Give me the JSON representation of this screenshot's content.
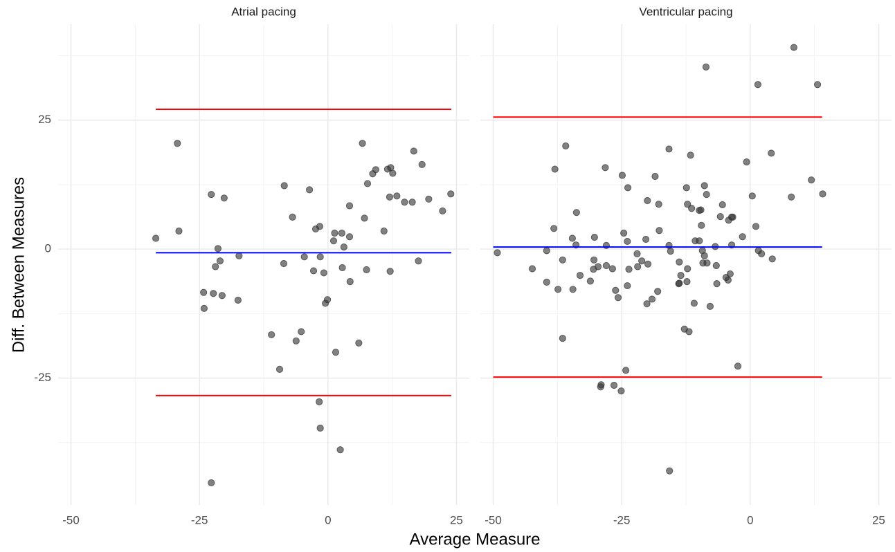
{
  "chart_data": {
    "type": "scatter",
    "xlabel": "Average Measure",
    "ylabel": "Diff. Between Measures",
    "xlim": [
      -52.5,
      27.5
    ],
    "ylim": [
      -49.6,
      43.6
    ],
    "xticks": [
      -50,
      -25,
      0,
      25
    ],
    "yticks": [
      -25,
      0,
      25
    ],
    "minor_xticks": [
      -37.5,
      -12.5,
      12.5
    ],
    "minor_yticks": [
      -37.5,
      -12.5,
      12.5,
      37.5
    ],
    "grid": true,
    "point_color": "#333333",
    "facets": [
      {
        "title": "Atrial pacing",
        "x": [
          -33.5,
          -29.3,
          -29.0,
          -22.7,
          -20.2,
          -21.4,
          -21.9,
          -21.0,
          -24.2,
          -22.3,
          -20.6,
          -24.1,
          -17.3,
          -17.5,
          -22.7,
          -6.9,
          -8.5,
          -8.6,
          -3.6,
          -4.6,
          -2.4,
          -1.6,
          -2.8,
          -1.5,
          -0.8,
          -0.5,
          -0.1,
          -11.0,
          -6.2,
          -5.2,
          -9.4,
          1.3,
          1.1,
          2.7,
          3.1,
          2.8,
          1.5,
          4.2,
          4.2,
          4.3,
          6.0,
          6.7,
          7.1,
          7.5,
          7.7,
          8.7,
          9.3,
          10.9,
          11.6,
          12.2,
          12.6,
          12.0,
          12.1,
          13.4,
          14.9,
          16.4,
          16.7,
          18.3,
          17.6,
          19.6,
          22.3,
          23.9,
          -1.7,
          -1.5,
          2.4
        ],
        "y": [
          2.1,
          20.5,
          3.5,
          10.6,
          9.9,
          0.1,
          -3.4,
          -2.3,
          -8.4,
          -8.6,
          -9.0,
          -11.5,
          -1.3,
          -9.9,
          -45.3,
          6.2,
          12.3,
          -2.8,
          11.5,
          -1.5,
          3.9,
          4.4,
          -4.2,
          -1.5,
          -4.6,
          -10.5,
          -9.8,
          -16.6,
          -17.8,
          -16.0,
          -23.3,
          3.1,
          1.6,
          3.1,
          0.4,
          -3.6,
          -20.0,
          8.4,
          2.4,
          -6.3,
          -18.2,
          20.5,
          6.0,
          -4.0,
          12.7,
          14.6,
          15.4,
          3.5,
          15.5,
          15.8,
          14.7,
          10.1,
          -4.3,
          10.3,
          9.1,
          9.1,
          19.0,
          16.4,
          -2.3,
          9.7,
          7.4,
          10.7,
          -29.6,
          -34.7,
          -38.9
        ],
        "hlines": [
          {
            "y": 27.1,
            "x": [
              -33.5,
              24.0
            ],
            "color": "#ff0000"
          },
          {
            "y": -0.7,
            "x": [
              -33.5,
              24.0
            ],
            "color": "#0000ff"
          },
          {
            "y": -28.4,
            "x": [
              -33.5,
              24.0
            ],
            "color": "#ff0000"
          }
        ]
      },
      {
        "title": "Ventricular pacing",
        "x": [
          -49.2,
          -42.4,
          -39.6,
          -39.6,
          -38.2,
          -38.0,
          -37.4,
          -36.5,
          -36.5,
          -35.9,
          -34.6,
          -34.5,
          -33.9,
          -33.8,
          -33.1,
          -31.1,
          -30.4,
          -30.3,
          -30.5,
          -29.6,
          -29.0,
          -29.1,
          -28.2,
          -28.0,
          -28.0,
          -26.8,
          -26.5,
          -26.2,
          -25.7,
          -25.1,
          -24.9,
          -24.6,
          -24.2,
          -23.9,
          -23.9,
          -23.8,
          -23.6,
          -22.0,
          -21.9,
          -21.1,
          -20.3,
          -20.1,
          -20.0,
          -19.9,
          -19.1,
          -18.5,
          -18.0,
          -17.8,
          -17.7,
          -15.8,
          -15.8,
          -15.5,
          -15.7,
          -13.8,
          -13.9,
          -13.8,
          -13.5,
          -12.8,
          -12.4,
          -12.3,
          -12.2,
          -12.2,
          -11.9,
          -11.6,
          -11.4,
          -10.9,
          -10.7,
          -9.9,
          -9.9,
          -9.6,
          -9.5,
          -9.3,
          -9.2,
          -8.9,
          -8.9,
          -8.6,
          -8.5,
          -8.4,
          -7.8,
          -6.8,
          -6.6,
          -6.5,
          -5.8,
          -5.4,
          -4.7,
          -4.3,
          -4.2,
          -3.9,
          -3.6,
          -3.4,
          -3.6,
          -2.4,
          -1.5,
          -0.7,
          0.4,
          1.1,
          1.5,
          1.6,
          2.2,
          4.1,
          4.3,
          8.0,
          8.5,
          11.9,
          13.1,
          14.1
        ],
        "y": [
          -0.7,
          -3.8,
          -6.4,
          -0.3,
          4.0,
          15.5,
          -7.8,
          -2.1,
          -17.3,
          20.0,
          2.1,
          -7.8,
          0.8,
          7.1,
          -5.1,
          -6.2,
          -2.1,
          2.3,
          -3.9,
          -3.4,
          -26.3,
          -26.7,
          15.8,
          0.7,
          -3.2,
          -3.8,
          -26.4,
          -8.0,
          -9.4,
          -27.5,
          14.3,
          3.1,
          -23.5,
          -7.1,
          1.5,
          11.9,
          -3.9,
          -0.9,
          -3.4,
          -2.3,
          1.9,
          -10.6,
          9.4,
          -2.9,
          -9.7,
          14.1,
          -8.2,
          8.7,
          3.6,
          19.4,
          0.7,
          -0.4,
          -43.0,
          -2.5,
          -6.7,
          -6.6,
          -5.1,
          -15.5,
          11.9,
          -6.3,
          8.7,
          -3.8,
          -16.0,
          18.2,
          7.9,
          -10.5,
          1.6,
          1.6,
          7.5,
          7.6,
          4.6,
          -0.3,
          -2.7,
          -1.3,
          12.3,
          35.3,
          10.6,
          -2.7,
          -11.1,
          0.5,
          -3.2,
          -6.7,
          6.3,
          8.6,
          -5.5,
          -6.0,
          5.6,
          -4.8,
          6.2,
          6.2,
          0.8,
          -22.7,
          2.4,
          16.9,
          10.3,
          4.4,
          31.9,
          -0.3,
          -0.9,
          18.6,
          -1.9,
          10.1,
          39.1,
          13.4,
          31.9,
          10.7
        ],
        "hlines": [
          {
            "y": 25.6,
            "x": [
              -50.0,
              14.0
            ],
            "color": "#ff0000"
          },
          {
            "y": 0.4,
            "x": [
              -50.0,
              14.0
            ],
            "color": "#0000ff"
          },
          {
            "y": -24.8,
            "x": [
              -50.0,
              14.0
            ],
            "color": "#ff0000"
          }
        ]
      }
    ]
  }
}
